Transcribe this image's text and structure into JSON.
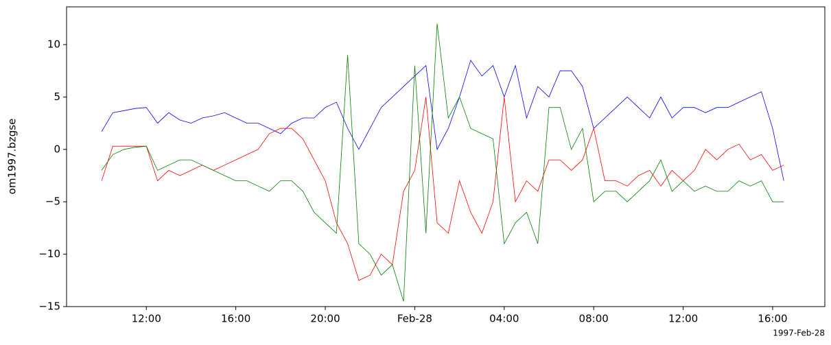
{
  "chart_data": {
    "type": "line",
    "ylabel": "om1997.bzgse",
    "corner_label": "1997-Feb-28",
    "x": [
      "1997-02-27T10:00",
      "1997-02-27T10:30",
      "1997-02-27T11:00",
      "1997-02-27T11:30",
      "1997-02-27T12:00",
      "1997-02-27T12:30",
      "1997-02-27T13:00",
      "1997-02-27T13:30",
      "1997-02-27T14:00",
      "1997-02-27T14:30",
      "1997-02-27T15:00",
      "1997-02-27T15:30",
      "1997-02-27T16:00",
      "1997-02-27T16:30",
      "1997-02-27T17:00",
      "1997-02-27T17:30",
      "1997-02-27T18:00",
      "1997-02-27T18:30",
      "1997-02-27T19:00",
      "1997-02-27T19:30",
      "1997-02-27T20:00",
      "1997-02-27T20:30",
      "1997-02-27T21:00",
      "1997-02-27T21:30",
      "1997-02-27T22:00",
      "1997-02-27T22:30",
      "1997-02-27T23:00",
      "1997-02-27T23:30",
      "1997-02-28T00:00",
      "1997-02-28T00:30",
      "1997-02-28T01:00",
      "1997-02-28T01:30",
      "1997-02-28T02:00",
      "1997-02-28T02:30",
      "1997-02-28T03:00",
      "1997-02-28T03:30",
      "1997-02-28T04:00",
      "1997-02-28T04:30",
      "1997-02-28T05:00",
      "1997-02-28T05:30",
      "1997-02-28T06:00",
      "1997-02-28T06:30",
      "1997-02-28T07:00",
      "1997-02-28T07:30",
      "1997-02-28T08:00",
      "1997-02-28T08:30",
      "1997-02-28T09:00",
      "1997-02-28T09:30",
      "1997-02-28T10:00",
      "1997-02-28T10:30",
      "1997-02-28T11:00",
      "1997-02-28T11:30",
      "1997-02-28T12:00",
      "1997-02-28T12:30",
      "1997-02-28T13:00",
      "1997-02-28T13:30",
      "1997-02-28T14:00",
      "1997-02-28T14:30",
      "1997-02-28T15:00",
      "1997-02-28T15:30",
      "1997-02-28T16:00",
      "1997-02-28T16:30"
    ],
    "series": [
      {
        "color": "#0000ff",
        "values": [
          1.7,
          3.5,
          3.7,
          3.9,
          4.0,
          2.5,
          3.5,
          2.8,
          2.5,
          3.0,
          3.2,
          3.5,
          3.0,
          2.5,
          2.5,
          2.0,
          1.5,
          2.5,
          3.0,
          3.0,
          4.0,
          4.5,
          2.0,
          0.0,
          2.0,
          4.0,
          5.0,
          6.0,
          7,
          8,
          0,
          2,
          5,
          8.5,
          7,
          8,
          5,
          8,
          3,
          6,
          5,
          7.5,
          7.5,
          6,
          2,
          3,
          4,
          5,
          4,
          3,
          5,
          3,
          4,
          4,
          3.5,
          4,
          4,
          4.5,
          5,
          5.5,
          2,
          -3
        ]
      },
      {
        "color": "#ff0000",
        "values": [
          -3,
          0.3,
          0.3,
          0.3,
          0.3,
          -3,
          -2,
          -2.5,
          -2,
          -1.5,
          -2,
          -1.5,
          -1,
          -0.5,
          0,
          1.5,
          2,
          2,
          1,
          -1,
          -3,
          -7,
          -9,
          -12.5,
          -12,
          -10,
          -11,
          -4,
          -2,
          5,
          -7,
          -8,
          -3,
          -6,
          -8,
          -5,
          5,
          -5,
          -3,
          -4,
          -1,
          -1,
          -2,
          -1,
          2,
          -3,
          -3,
          -3.5,
          -2.5,
          -2,
          -3.5,
          -2,
          -3,
          -2,
          0,
          -1,
          0,
          0.5,
          -1,
          -0.5,
          -2,
          -1.5
        ]
      },
      {
        "color": "#008000",
        "values": [
          -2,
          -0.5,
          0,
          0.2,
          0.3,
          -2,
          -1.5,
          -1,
          -1,
          -1.5,
          -2,
          -2.5,
          -3,
          -3,
          -3.5,
          -4,
          -3,
          -3,
          -4,
          -6,
          -7,
          -8,
          9,
          -9,
          -10,
          -12,
          -11,
          -14.5,
          8,
          -8,
          12,
          3,
          5,
          2,
          1.5,
          1,
          -9,
          -7,
          -6,
          -9,
          4,
          4,
          0,
          2,
          -5,
          -4,
          -4,
          -5,
          -4,
          -3,
          -1,
          -4,
          -3,
          -4,
          -3.5,
          -4,
          -4,
          -3,
          -3.5,
          -3,
          -5,
          -5
        ]
      }
    ],
    "xlim": [
      "1997-02-27T08:26",
      "1997-02-28T18:20"
    ],
    "xticks": [
      {
        "value": "1997-02-27T12:00",
        "label": "12:00"
      },
      {
        "value": "1997-02-27T16:00",
        "label": "16:00"
      },
      {
        "value": "1997-02-27T20:00",
        "label": "20:00"
      },
      {
        "value": "1997-02-28T00:00",
        "label": "Feb-28"
      },
      {
        "value": "1997-02-28T04:00",
        "label": "04:00"
      },
      {
        "value": "1997-02-28T08:00",
        "label": "08:00"
      },
      {
        "value": "1997-02-28T12:00",
        "label": "12:00"
      },
      {
        "value": "1997-02-28T16:00",
        "label": "16:00"
      }
    ],
    "ylim": [
      -15,
      13.6
    ],
    "yticks": [
      {
        "value": -15,
        "label": "−15"
      },
      {
        "value": -10,
        "label": "−10"
      },
      {
        "value": -5,
        "label": "−5"
      },
      0,
      5,
      10
    ]
  }
}
